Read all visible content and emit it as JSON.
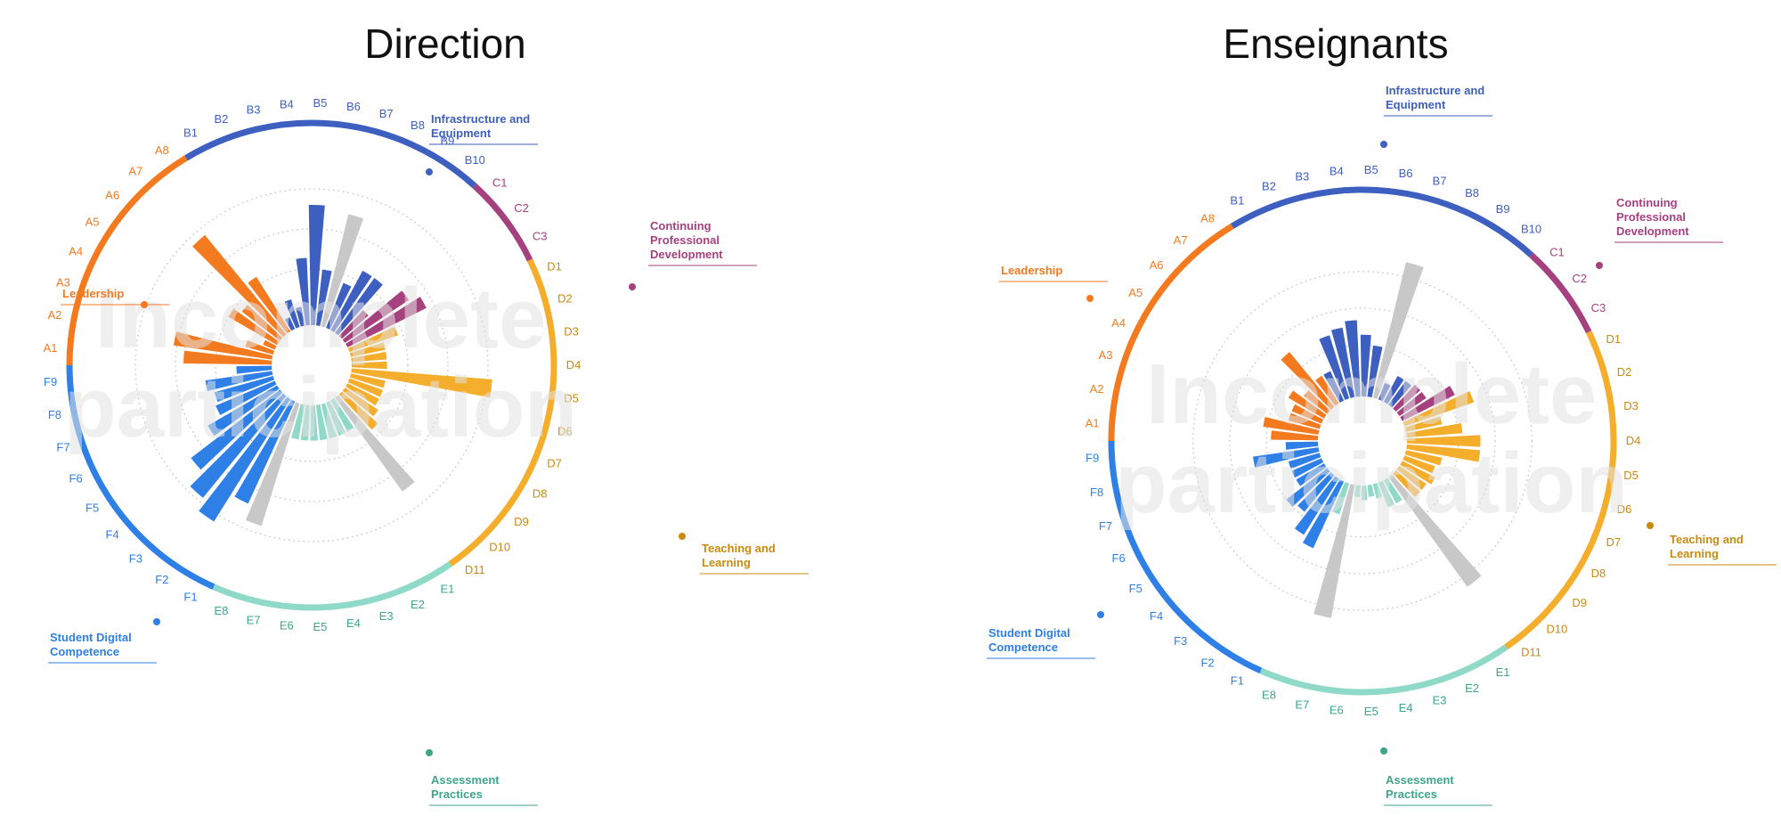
{
  "colors": {
    "leadership": "#f47a20",
    "infrastructure": "#3d5fbf",
    "cpd": "#a64180",
    "teaching": "#f5ad2c",
    "assessment": "#8fd9c8",
    "student": "#2e7fe6",
    "grey": "#c8c8c8"
  },
  "chart_data": [
    {
      "type": "radial-bar",
      "title": "Direction",
      "watermark": [
        "Incomplete",
        "participation"
      ],
      "areas": [
        {
          "key": "leadership",
          "name": "Leadership",
          "items": [
            "A1",
            "A2",
            "A3",
            "A4",
            "A5",
            "A6",
            "A7",
            "A8"
          ],
          "values": [
            55,
            62,
            18,
            8,
            35,
            30,
            80,
            40
          ],
          "greyed": [
            false,
            false,
            false,
            false,
            false,
            false,
            false,
            false
          ]
        },
        {
          "key": "infrastructure",
          "name": "Infrastructure and Equipment",
          "items": [
            "B1",
            "B2",
            "B3",
            "B4",
            "B5",
            "B6",
            "B7",
            "B8",
            "B9",
            "B10"
          ],
          "values": [
            8,
            18,
            12,
            42,
            75,
            35,
            72,
            30,
            42,
            42
          ],
          "greyed": [
            false,
            false,
            false,
            false,
            false,
            false,
            true,
            false,
            false,
            false
          ]
        },
        {
          "key": "cpd",
          "name": "Continuing Professional Development",
          "items": [
            "C1",
            "C2",
            "C3"
          ],
          "values": [
            22,
            48,
            55
          ],
          "greyed": [
            false,
            false,
            false
          ]
        },
        {
          "key": "teaching",
          "name": "Teaching and Learning",
          "items": [
            "D1",
            "D2",
            "D3",
            "D4",
            "D5",
            "D6",
            "D7",
            "D8",
            "D9",
            "D10",
            "D11"
          ],
          "values": [
            32,
            22,
            22,
            22,
            88,
            22,
            22,
            22,
            25,
            30,
            72
          ],
          "greyed": [
            false,
            false,
            false,
            false,
            false,
            false,
            false,
            false,
            false,
            false,
            true
          ]
        },
        {
          "key": "assessment",
          "name": "Assessment Practices",
          "items": [
            "E1",
            "E2",
            "E3",
            "E4",
            "E5",
            "E6",
            "E7",
            "E8"
          ],
          "values": [
            22,
            22,
            22,
            22,
            22,
            22,
            22,
            80
          ],
          "greyed": [
            false,
            false,
            false,
            false,
            false,
            false,
            false,
            true
          ]
        },
        {
          "key": "student",
          "name": "Student Digital Competence",
          "items": [
            "F1",
            "F2",
            "F3",
            "F4",
            "F5",
            "F6",
            "F7",
            "F8",
            "F9"
          ],
          "values": [
            70,
            90,
            82,
            70,
            50,
            40,
            38,
            42,
            22
          ],
          "greyed": [
            false,
            false,
            false,
            false,
            false,
            false,
            false,
            false,
            false
          ]
        }
      ]
    },
    {
      "type": "radial-bar",
      "title": "Enseignants",
      "watermark": [
        "Incomplete",
        "participation"
      ],
      "areas": [
        {
          "key": "leadership",
          "name": "Leadership",
          "items": [
            "A1",
            "A2",
            "A3",
            "A4",
            "A5",
            "A6",
            "A7",
            "A8"
          ],
          "values": [
            32,
            38,
            22,
            22,
            28,
            20,
            48,
            22
          ],
          "greyed": [
            false,
            false,
            false,
            false,
            false,
            false,
            false,
            false
          ]
        },
        {
          "key": "infrastructure",
          "name": "Infrastructure and Equipment",
          "items": [
            "B1",
            "B2",
            "B3",
            "B4",
            "B5",
            "B6",
            "B7",
            "B8",
            "B9",
            "B10"
          ],
          "values": [
            22,
            45,
            48,
            52,
            42,
            35,
            95,
            12,
            20,
            20
          ],
          "greyed": [
            false,
            false,
            false,
            false,
            false,
            false,
            true,
            false,
            false,
            false
          ]
        },
        {
          "key": "cpd",
          "name": "Continuing Professional Development",
          "items": [
            "C1",
            "C2",
            "C3"
          ],
          "values": [
            22,
            22,
            40
          ],
          "greyed": [
            false,
            false,
            false
          ]
        },
        {
          "key": "teaching",
          "name": "Teaching and Learning",
          "items": [
            "D1",
            "D2",
            "D3",
            "D4",
            "D5",
            "D6",
            "D7",
            "D8",
            "D9",
            "D10",
            "D11"
          ],
          "values": [
            50,
            25,
            38,
            50,
            50,
            25,
            22,
            25,
            22,
            22,
            92
          ],
          "greyed": [
            false,
            false,
            false,
            false,
            false,
            false,
            false,
            false,
            false,
            false,
            true
          ]
        },
        {
          "key": "assessment",
          "name": "Assessment Practices",
          "items": [
            "E1",
            "E2",
            "E3",
            "E4",
            "E5",
            "E6",
            "E7",
            "E8"
          ],
          "values": [
            18,
            18,
            10,
            8,
            10,
            8,
            92,
            22
          ],
          "greyed": [
            false,
            false,
            false,
            false,
            false,
            false,
            true,
            false
          ]
        },
        {
          "key": "student",
          "name": "Student Digital Competence",
          "items": [
            "F1",
            "F2",
            "F3",
            "F4",
            "F5",
            "F6",
            "F7",
            "F8",
            "F9"
          ],
          "values": [
            50,
            45,
            32,
            35,
            22,
            22,
            22,
            45,
            22
          ],
          "greyed": [
            false,
            false,
            false,
            false,
            false,
            false,
            false,
            false,
            false
          ]
        }
      ]
    }
  ]
}
